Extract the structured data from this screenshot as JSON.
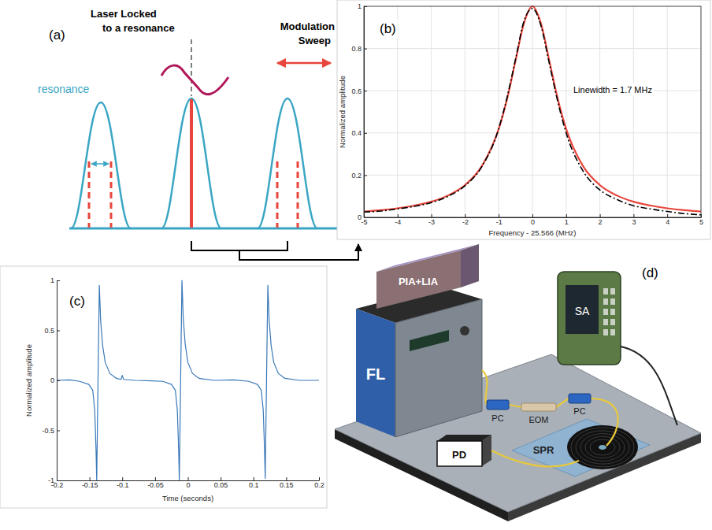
{
  "chart_data": [
    {
      "type": "line",
      "panel_label": "(b)",
      "x_label": "Frequency - 25.566 (MHz)",
      "y_label": "Normalized amplitude",
      "annotations": [
        "Linewidth = 1.7 MHz"
      ],
      "x": [
        -5,
        -4.5,
        -4,
        -3.5,
        -3,
        -2.5,
        -2,
        -1.5,
        -1,
        -0.75,
        -0.5,
        -0.25,
        0,
        0.25,
        0.5,
        0.75,
        1,
        1.5,
        2,
        2.5,
        3,
        3.5,
        4,
        4.5,
        5
      ],
      "series": [
        {
          "color": "#e8463c",
          "line_style": "solid",
          "values": [
            0.028,
            0.034,
            0.043,
            0.056,
            0.074,
            0.104,
            0.153,
            0.243,
            0.419,
            0.562,
            0.743,
            0.92,
            1,
            0.92,
            0.743,
            0.562,
            0.419,
            0.243,
            0.153,
            0.104,
            0.074,
            0.056,
            0.043,
            0.034,
            0.028
          ]
        },
        {
          "color": "#000000",
          "line_style": "dashdot",
          "values": [
            0.025,
            0.03,
            0.04,
            0.052,
            0.07,
            0.1,
            0.15,
            0.24,
            0.42,
            0.57,
            0.75,
            0.93,
            0.99,
            0.91,
            0.73,
            0.55,
            0.4,
            0.22,
            0.13,
            0.085,
            0.055,
            0.04,
            0.028,
            0.018,
            0.012
          ]
        }
      ],
      "xlim": [
        -5,
        5
      ],
      "xticks": [
        -5,
        -4,
        -3,
        -2,
        -1,
        0,
        1,
        2,
        3,
        4,
        5
      ],
      "ylim": [
        0,
        1
      ],
      "yticks": [
        0,
        0.2,
        0.4,
        0.6,
        0.8,
        1
      ],
      "grid": true
    },
    {
      "type": "line",
      "panel_label": "(c)",
      "x_label": "Time (seconds)",
      "y_label": "Normalized amplitude",
      "x": [
        -0.2,
        -0.18,
        -0.165,
        -0.151,
        -0.145,
        -0.142,
        -0.14,
        -0.139,
        -0.137,
        -0.135,
        -0.133,
        -0.13,
        -0.126,
        -0.119,
        -0.109,
        -0.102,
        -0.1,
        -0.098,
        -0.08,
        -0.055,
        -0.038,
        -0.025,
        -0.019,
        -0.016,
        -0.014,
        -0.013,
        -0.011,
        -0.009,
        -0.007,
        -0.004,
        0,
        0.007,
        0.017,
        0.04,
        0.07,
        0.093,
        0.106,
        0.112,
        0.115,
        0.117,
        0.118,
        0.12,
        0.122,
        0.124,
        0.127,
        0.131,
        0.138,
        0.148,
        0.17,
        0.2
      ],
      "series": [
        {
          "color": "#3a78b8",
          "line_style": "solid",
          "values": [
            0,
            0.005,
            -0.01,
            -0.04,
            -0.1,
            -0.3,
            -0.7,
            -1,
            0,
            0.95,
            0.6,
            0.35,
            0.18,
            0.07,
            0.02,
            0.01,
            0.05,
            0.01,
            0,
            -0.005,
            -0.01,
            -0.04,
            -0.1,
            -0.3,
            -0.7,
            -1,
            0,
            1,
            0.62,
            0.36,
            0.18,
            0.07,
            0.02,
            0,
            0.005,
            -0.01,
            -0.04,
            -0.1,
            -0.3,
            -0.7,
            -0.98,
            0,
            0.95,
            0.6,
            0.35,
            0.18,
            0.07,
            0.02,
            0,
            0
          ]
        }
      ],
      "xlim": [
        -0.2,
        0.2
      ],
      "xticks": [
        -0.2,
        -0.15,
        -0.1,
        -0.05,
        0,
        0.05,
        0.1,
        0.15,
        0.2
      ],
      "ylim": [
        -1,
        1
      ],
      "yticks": [
        -1,
        -0.5,
        0,
        0.5,
        1
      ],
      "grid": false
    }
  ],
  "diagram": {
    "letter": "(a)",
    "lock_label": [
      "Laser Locked",
      "to a resonance"
    ],
    "sweep_label": [
      "Modulation",
      "Sweep"
    ],
    "resonance_label": "resonance"
  },
  "setup": {
    "letter": "(d)",
    "devices": {
      "pia_lia": "PIA+LIA",
      "fl": "FL",
      "pc_in": "PC",
      "eom": "EOM",
      "pc_out": "PC",
      "sa": "SA",
      "pd": "PD",
      "spr": "SPR"
    }
  }
}
